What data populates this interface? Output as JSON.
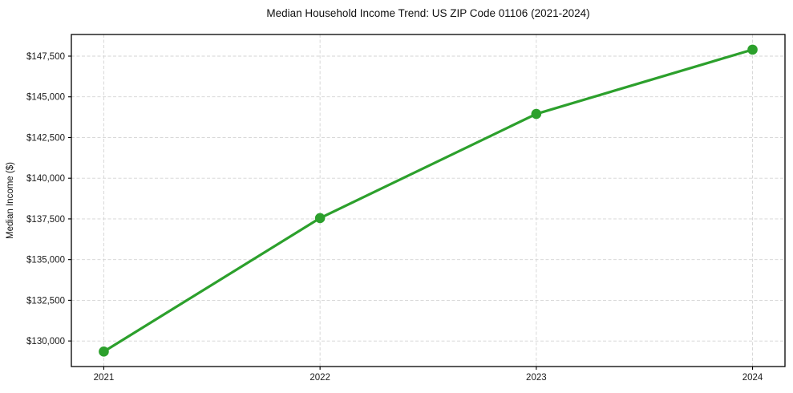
{
  "chart_data": {
    "type": "line",
    "title": "Median Household Income Trend: US ZIP Code 01106 (2021-2024)",
    "xlabel": "",
    "ylabel": "Median Income ($)",
    "x": [
      2021,
      2022,
      2023,
      2024
    ],
    "series": [
      {
        "name": "Median Household Income",
        "values": [
          129350,
          137550,
          143950,
          147900
        ],
        "color": "#2ca02c"
      }
    ],
    "xtick_labels": [
      "2021",
      "2022",
      "2023",
      "2024"
    ],
    "ytick_values": [
      130000,
      132500,
      135000,
      137500,
      140000,
      142500,
      145000,
      147500
    ],
    "ytick_labels": [
      "$130,000",
      "$132,500",
      "$135,000",
      "$137,500",
      "$140,000",
      "$142,500",
      "$145,000",
      "$147,500"
    ],
    "xlim": [
      2020.85,
      2024.15
    ],
    "ylim": [
      128430,
      148830
    ],
    "grid": true,
    "grid_color": "#d4d4d4",
    "grid_dash": "4 2.5",
    "axis_color": "#000000",
    "tick_label_color": "#1a1a1a",
    "line_width": 3.2,
    "marker_radius": 6.3,
    "legend_position": "none",
    "background_color": "#ffffff"
  }
}
